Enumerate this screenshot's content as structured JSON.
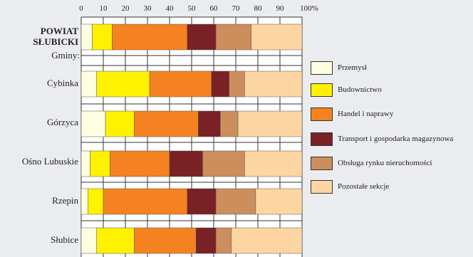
{
  "chart_data": {
    "type": "bar",
    "orientation": "horizontal",
    "stacked": true,
    "percent": true,
    "xlim": [
      0,
      100
    ],
    "x_ticks": [
      "0",
      "10",
      "20",
      "30",
      "40",
      "50",
      "60",
      "70",
      "80",
      "90",
      "100%"
    ],
    "group_header": "Gminy:",
    "categories": [
      "POWIAT SŁUBICKI",
      "Cybinka",
      "Górzyca",
      "Ośno Lubuskie",
      "Rzepin",
      "Słubice"
    ],
    "category_lines": [
      [
        "POWIAT",
        "SŁUBICKI"
      ],
      [
        "Cybinka"
      ],
      [
        "Górzyca"
      ],
      [
        "Ośno Lubuskie"
      ],
      [
        "Rzepin"
      ],
      [
        "Słubice"
      ]
    ],
    "series": [
      {
        "name": "Przemysł",
        "color": "#fffde0",
        "values": [
          5,
          7,
          11,
          4,
          3,
          7
        ]
      },
      {
        "name": "Budownictwo",
        "color": "#fff200",
        "values": [
          9,
          24,
          13,
          9,
          7,
          17
        ]
      },
      {
        "name": "Handel i naprawy",
        "color": "#f58220",
        "values": [
          34,
          28,
          29,
          27,
          38,
          28
        ]
      },
      {
        "name": "Transport i gospodarka magazynowa",
        "color": "#7a2126",
        "values": [
          13,
          8,
          10,
          15,
          13,
          9
        ]
      },
      {
        "name": "Obsługa rynku nieruchomości",
        "color": "#cc8e5c",
        "values": [
          16,
          7,
          8,
          19,
          18,
          7
        ]
      },
      {
        "name": "Pozostałe sekcje",
        "color": "#fdd5a2",
        "values": [
          23,
          26,
          29,
          26,
          21,
          32
        ]
      }
    ],
    "grid": true,
    "legend_position": "right"
  }
}
